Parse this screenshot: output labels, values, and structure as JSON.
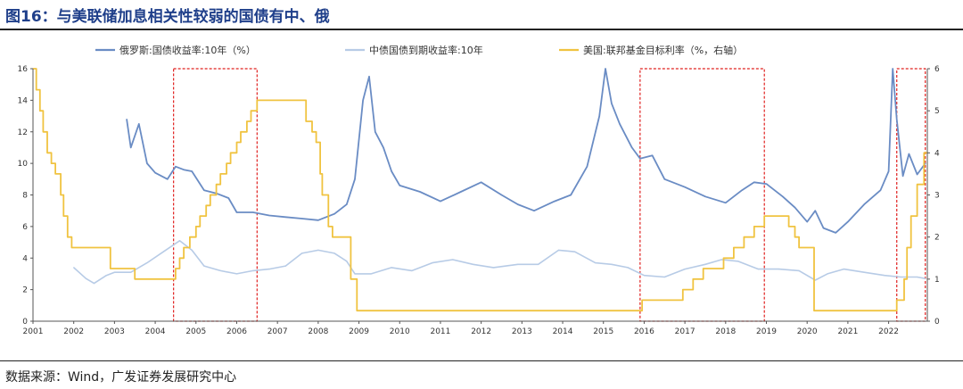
{
  "title": "图16：与美联储加息相关性较弱的国债有中、俄",
  "source": "数据来源：Wind，广发证券发展研究中心",
  "colors": {
    "russia": "#6a8cc4",
    "china": "#b7cbe6",
    "fed": "#f0c340",
    "highlight": "#e0201f"
  },
  "chart_data": {
    "type": "line",
    "title": "图16：与美联储加息相关性较弱的国债有中、俄",
    "xlim": [
      2001,
      2022.95
    ],
    "ylim_left": [
      0,
      16
    ],
    "ylim_right": [
      0,
      6
    ],
    "legend_position": "top",
    "x_ticks": [
      "2001",
      "2002",
      "2003",
      "2004",
      "2005",
      "2006",
      "2007",
      "2008",
      "2009",
      "2010",
      "2011",
      "2012",
      "2013",
      "2014",
      "2015",
      "2016",
      "2017",
      "2018",
      "2019",
      "2020",
      "2021",
      "2022"
    ],
    "y_left_ticks": [
      "0",
      "2",
      "4",
      "6",
      "8",
      "10",
      "12",
      "14",
      "16"
    ],
    "y_right_ticks": [
      "0",
      "1",
      "2",
      "3",
      "4",
      "5",
      "6"
    ],
    "series": [
      {
        "name": "俄罗斯:国债收益率:10年（%）",
        "axis": "left",
        "x": [
          2003.3,
          2003.4,
          2003.6,
          2003.8,
          2004.0,
          2004.3,
          2004.5,
          2004.7,
          2004.9,
          2005.2,
          2005.5,
          2005.8,
          2006.0,
          2006.4,
          2006.8,
          2007.2,
          2007.6,
          2008.0,
          2008.4,
          2008.7,
          2008.9,
          2009.1,
          2009.25,
          2009.4,
          2009.6,
          2009.8,
          2010.0,
          2010.5,
          2011.0,
          2011.5,
          2012.0,
          2012.5,
          2012.9,
          2013.3,
          2013.8,
          2014.2,
          2014.6,
          2014.9,
          2015.05,
          2015.2,
          2015.4,
          2015.7,
          2015.9,
          2016.2,
          2016.5,
          2017.0,
          2017.5,
          2018.0,
          2018.4,
          2018.7,
          2019.0,
          2019.4,
          2019.7,
          2020.0,
          2020.2,
          2020.4,
          2020.7,
          2021.0,
          2021.4,
          2021.8,
          2022.0,
          2022.1,
          2022.2,
          2022.35,
          2022.5,
          2022.7,
          2022.9
        ],
        "values": [
          12.8,
          11.0,
          12.5,
          10.0,
          9.4,
          9.0,
          9.8,
          9.6,
          9.5,
          8.3,
          8.1,
          7.8,
          6.9,
          6.9,
          6.7,
          6.6,
          6.5,
          6.4,
          6.8,
          7.4,
          9.0,
          14.0,
          15.5,
          12.0,
          11.0,
          9.5,
          8.6,
          8.2,
          7.6,
          8.2,
          8.8,
          8.0,
          7.4,
          7.0,
          7.6,
          8.0,
          9.8,
          13.0,
          16.0,
          13.8,
          12.5,
          11.0,
          10.3,
          10.5,
          9.0,
          8.5,
          7.9,
          7.5,
          8.3,
          8.8,
          8.7,
          7.9,
          7.2,
          6.3,
          7.0,
          5.9,
          5.6,
          6.3,
          7.4,
          8.3,
          9.5,
          16.0,
          12.8,
          9.2,
          10.6,
          9.3,
          10.0
        ]
      },
      {
        "name": "中债国债到期收益率:10年",
        "axis": "left",
        "x": [
          2002.0,
          2002.3,
          2002.5,
          2002.8,
          2003.0,
          2003.4,
          2003.8,
          2004.2,
          2004.6,
          2004.9,
          2005.2,
          2005.6,
          2006.0,
          2006.4,
          2006.8,
          2007.2,
          2007.6,
          2008.0,
          2008.4,
          2008.7,
          2008.9,
          2009.3,
          2009.8,
          2010.3,
          2010.8,
          2011.3,
          2011.8,
          2012.3,
          2012.9,
          2013.4,
          2013.9,
          2014.3,
          2014.8,
          2015.2,
          2015.6,
          2016.0,
          2016.5,
          2017.0,
          2017.5,
          2017.9,
          2018.3,
          2018.8,
          2019.3,
          2019.8,
          2020.2,
          2020.5,
          2020.9,
          2021.4,
          2021.9,
          2022.3,
          2022.7,
          2022.9
        ],
        "values": [
          3.4,
          2.7,
          2.4,
          2.9,
          3.1,
          3.1,
          3.7,
          4.4,
          5.1,
          4.5,
          3.5,
          3.2,
          3.0,
          3.2,
          3.3,
          3.5,
          4.3,
          4.5,
          4.3,
          3.8,
          3.0,
          3.0,
          3.4,
          3.2,
          3.7,
          3.9,
          3.6,
          3.4,
          3.6,
          3.6,
          4.5,
          4.4,
          3.7,
          3.6,
          3.4,
          2.9,
          2.8,
          3.3,
          3.6,
          3.9,
          3.8,
          3.3,
          3.3,
          3.2,
          2.6,
          3.0,
          3.3,
          3.1,
          2.9,
          2.8,
          2.8,
          2.7
        ]
      },
      {
        "name": "美国:联邦基金目标利率（%，右轴）",
        "axis": "right",
        "step": true,
        "x": [
          2001.0,
          2001.08,
          2001.17,
          2001.25,
          2001.35,
          2001.45,
          2001.55,
          2001.68,
          2001.75,
          2001.85,
          2001.95,
          2002.9,
          2003.5,
          2004.5,
          2004.6,
          2004.7,
          2004.85,
          2005.0,
          2005.1,
          2005.25,
          2005.35,
          2005.5,
          2005.6,
          2005.75,
          2005.85,
          2006.0,
          2006.1,
          2006.25,
          2006.35,
          2006.5,
          2007.7,
          2007.85,
          2007.95,
          2008.05,
          2008.1,
          2008.25,
          2008.35,
          2008.8,
          2008.95,
          2015.95,
          2016.95,
          2017.2,
          2017.45,
          2017.95,
          2018.2,
          2018.45,
          2018.7,
          2018.95,
          2019.55,
          2019.7,
          2019.8,
          2020.17,
          2022.2,
          2022.38,
          2022.45,
          2022.55,
          2022.7,
          2022.87
        ],
        "values": [
          6.0,
          5.5,
          5.0,
          4.5,
          4.0,
          3.75,
          3.5,
          3.0,
          2.5,
          2.0,
          1.75,
          1.25,
          1.0,
          1.25,
          1.5,
          1.75,
          2.0,
          2.25,
          2.5,
          2.75,
          3.0,
          3.25,
          3.5,
          3.75,
          4.0,
          4.25,
          4.5,
          4.75,
          5.0,
          5.25,
          4.75,
          4.5,
          4.25,
          3.5,
          3.0,
          2.25,
          2.0,
          1.0,
          0.25,
          0.5,
          0.75,
          1.0,
          1.25,
          1.5,
          1.75,
          2.0,
          2.25,
          2.5,
          2.25,
          2.0,
          1.75,
          0.25,
          0.5,
          1.0,
          1.75,
          2.5,
          3.25,
          4.0
        ]
      }
    ],
    "highlight_ranges": [
      [
        2004.45,
        2006.5
      ],
      [
        2015.9,
        2018.95
      ],
      [
        2022.2,
        2022.9
      ]
    ]
  }
}
